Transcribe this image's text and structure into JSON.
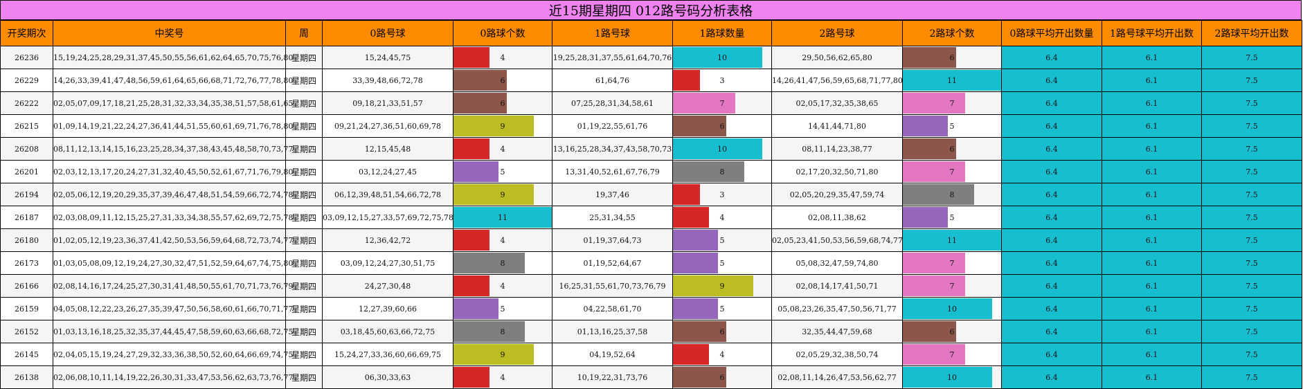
{
  "title": "近15期星期四 012路号码分析表格",
  "headers": [
    "开奖期次",
    "中奖号",
    "周",
    "0路号球",
    "0路球个数",
    "1路号球",
    "1路球数量",
    "2路号球",
    "2路球个数",
    "0路球平均开出数量",
    "1路号球平均开出数",
    "2路球平均开出数"
  ],
  "count_colors": {
    "3": "#d62728",
    "4": "#d62728",
    "5": "#9467bd",
    "6": "#8c564b",
    "7": "#e377c2",
    "8": "#7f7f7f",
    "9": "#bcbd22",
    "10": "#17becf",
    "11": "#17becf"
  },
  "count_fill_max": 11,
  "rows": [
    {
      "period": "26236",
      "numbers": "15,19,24,25,28,29,31,37,45,50,55,56,61,62,64,65,70,75,76,80",
      "week": "星期四",
      "r0": "15,24,45,75",
      "c0": 4,
      "r1": "19,25,28,31,37,55,61,64,70,76",
      "c1": 10,
      "r2": "29,50,56,62,65,80",
      "c2": 6,
      "a0": "6.4",
      "a1": "6.1",
      "a2": "7.5"
    },
    {
      "period": "26229",
      "numbers": "14,26,33,39,41,47,48,56,59,61,64,65,66,68,71,72,76,77,78,80",
      "week": "星期四",
      "r0": "33,39,48,66,72,78",
      "c0": 6,
      "r1": "61,64,76",
      "c1": 3,
      "r2": "14,26,41,47,56,59,65,68,71,77,80",
      "c2": 11,
      "a0": "6.4",
      "a1": "6.1",
      "a2": "7.5"
    },
    {
      "period": "26222",
      "numbers": "02,05,07,09,17,18,21,25,28,31,32,33,34,35,38,51,57,58,61,65",
      "week": "星期四",
      "r0": "09,18,21,33,51,57",
      "c0": 6,
      "r1": "07,25,28,31,34,58,61",
      "c1": 7,
      "r2": "02,05,17,32,35,38,65",
      "c2": 7,
      "a0": "6.4",
      "a1": "6.1",
      "a2": "7.5"
    },
    {
      "period": "26215",
      "numbers": "01,09,14,19,21,22,24,27,36,41,44,51,55,60,61,69,71,76,78,80",
      "week": "星期四",
      "r0": "09,21,24,27,36,51,60,69,78",
      "c0": 9,
      "r1": "01,19,22,55,61,76",
      "c1": 6,
      "r2": "14,41,44,71,80",
      "c2": 5,
      "a0": "6.4",
      "a1": "6.1",
      "a2": "7.5"
    },
    {
      "period": "26208",
      "numbers": "08,11,12,13,14,15,16,23,25,28,34,37,38,43,45,48,58,70,73,77",
      "week": "星期四",
      "r0": "12,15,45,48",
      "c0": 4,
      "r1": "13,16,25,28,34,37,43,58,70,73",
      "c1": 10,
      "r2": "08,11,14,23,38,77",
      "c2": 6,
      "a0": "6.4",
      "a1": "6.1",
      "a2": "7.5"
    },
    {
      "period": "26201",
      "numbers": "02,03,12,13,17,20,24,27,31,32,40,45,50,52,61,67,71,76,79,80",
      "week": "星期四",
      "r0": "03,12,24,27,45",
      "c0": 5,
      "r1": "13,31,40,52,61,67,76,79",
      "c1": 8,
      "r2": "02,17,20,32,50,71,80",
      "c2": 7,
      "a0": "6.4",
      "a1": "6.1",
      "a2": "7.5"
    },
    {
      "period": "26194",
      "numbers": "02,05,06,12,19,20,29,35,37,39,46,47,48,51,54,59,66,72,74,78",
      "week": "星期四",
      "r0": "06,12,39,48,51,54,66,72,78",
      "c0": 9,
      "r1": "19,37,46",
      "c1": 3,
      "r2": "02,05,20,29,35,47,59,74",
      "c2": 8,
      "a0": "6.4",
      "a1": "6.1",
      "a2": "7.5"
    },
    {
      "period": "26187",
      "numbers": "02,03,08,09,11,12,15,25,27,31,33,34,38,55,57,62,69,72,75,78",
      "week": "星期四",
      "r0": "03,09,12,15,27,33,57,69,72,75,78",
      "c0": 11,
      "r1": "25,31,34,55",
      "c1": 4,
      "r2": "02,08,11,38,62",
      "c2": 5,
      "a0": "6.4",
      "a1": "6.1",
      "a2": "7.5"
    },
    {
      "period": "26180",
      "numbers": "01,02,05,12,19,23,36,37,41,42,50,53,56,59,64,68,72,73,74,77",
      "week": "星期四",
      "r0": "12,36,42,72",
      "c0": 4,
      "r1": "01,19,37,64,73",
      "c1": 5,
      "r2": "02,05,23,41,50,53,56,59,68,74,77",
      "c2": 11,
      "a0": "6.4",
      "a1": "6.1",
      "a2": "7.5"
    },
    {
      "period": "26173",
      "numbers": "01,03,05,08,09,12,19,24,27,30,32,47,51,52,59,64,67,74,75,80",
      "week": "星期四",
      "r0": "03,09,12,24,27,30,51,75",
      "c0": 8,
      "r1": "01,19,52,64,67",
      "c1": 5,
      "r2": "05,08,32,47,59,74,80",
      "c2": 7,
      "a0": "6.4",
      "a1": "6.1",
      "a2": "7.5"
    },
    {
      "period": "26166",
      "numbers": "02,08,14,16,17,24,25,27,30,31,41,48,50,55,61,70,71,73,76,79",
      "week": "星期四",
      "r0": "24,27,30,48",
      "c0": 4,
      "r1": "16,25,31,55,61,70,73,76,79",
      "c1": 9,
      "r2": "02,08,14,17,41,50,71",
      "c2": 7,
      "a0": "6.4",
      "a1": "6.1",
      "a2": "7.5"
    },
    {
      "period": "26159",
      "numbers": "04,05,08,12,22,23,26,27,35,39,47,50,56,58,60,61,66,70,71,77",
      "week": "星期四",
      "r0": "12,27,39,60,66",
      "c0": 5,
      "r1": "04,22,58,61,70",
      "c1": 5,
      "r2": "05,08,23,26,35,47,50,56,71,77",
      "c2": 10,
      "a0": "6.4",
      "a1": "6.1",
      "a2": "7.5"
    },
    {
      "period": "26152",
      "numbers": "01,03,13,16,18,25,32,35,37,44,45,47,58,59,60,63,66,68,72,75",
      "week": "星期四",
      "r0": "03,18,45,60,63,66,72,75",
      "c0": 8,
      "r1": "01,13,16,25,37,58",
      "c1": 6,
      "r2": "32,35,44,47,59,68",
      "c2": 6,
      "a0": "6.4",
      "a1": "6.1",
      "a2": "7.5"
    },
    {
      "period": "26145",
      "numbers": "02,04,05,15,19,24,27,29,32,33,36,38,50,52,60,64,66,69,74,75",
      "week": "星期四",
      "r0": "15,24,27,33,36,60,66,69,75",
      "c0": 9,
      "r1": "04,19,52,64",
      "c1": 4,
      "r2": "02,05,29,32,38,50,74",
      "c2": 7,
      "a0": "6.4",
      "a1": "6.1",
      "a2": "7.5"
    },
    {
      "period": "26138",
      "numbers": "02,06,08,10,11,14,19,22,26,30,31,33,47,53,56,62,63,73,76,77",
      "week": "星期四",
      "r0": "06,30,33,63",
      "c0": 4,
      "r1": "10,19,22,31,73,76",
      "c1": 6,
      "r2": "02,08,11,14,26,47,53,56,62,77",
      "c2": 10,
      "a0": "6.4",
      "a1": "6.1",
      "a2": "7.5"
    }
  ]
}
